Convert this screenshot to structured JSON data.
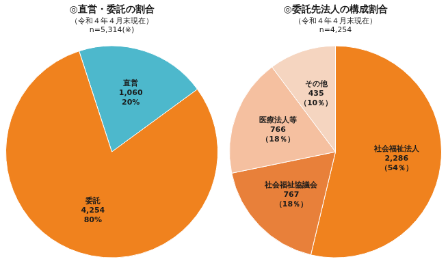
{
  "chart_data": [
    {
      "type": "pie",
      "title": "◎直営・委託の割合",
      "subtitle": "（令和４年４月末現在）",
      "annotation": "n=5,314(※)",
      "categories": [
        "直営",
        "委託"
      ],
      "values": [
        1060,
        4254
      ],
      "value_labels": [
        "1,060",
        "4,254"
      ],
      "percent": [
        20,
        80
      ],
      "percent_labels": [
        "20%",
        "80%"
      ],
      "colors": [
        "#4db8cc",
        "#f0821e"
      ],
      "data_labels": true
    },
    {
      "type": "pie",
      "title": "◎委託先法人の構成割合",
      "subtitle": "（令和４年４月末現在）",
      "annotation": "n=4,254",
      "categories": [
        "社会福祉法人",
        "社会福祉協議会",
        "医療法人等",
        "その他"
      ],
      "values": [
        2286,
        767,
        766,
        435
      ],
      "value_labels": [
        "2,286",
        "767",
        "766",
        "435"
      ],
      "percent": [
        54,
        18,
        18,
        10
      ],
      "percent_labels": [
        "（54％）",
        "（18％）",
        "（18％）",
        "（10％）"
      ],
      "colors": [
        "#f0821e",
        "#e8803a",
        "#f5c0a0",
        "#f5d5c0"
      ],
      "data_labels": true
    }
  ]
}
